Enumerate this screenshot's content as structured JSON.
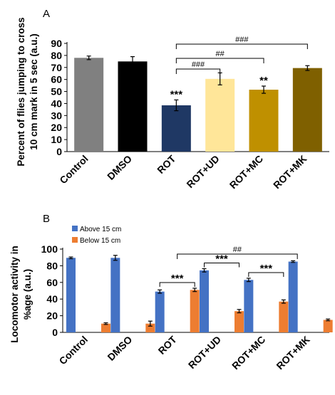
{
  "chart_data": [
    {
      "panel_label": "A",
      "type": "bar",
      "ylabel": "Percent of flies jumping to cross 10 cm mark in 5 sec (a.u.)",
      "ylim": [
        0,
        90
      ],
      "yticks": [
        "0",
        "10",
        "20",
        "30",
        "40",
        "50",
        "60",
        "70",
        "80",
        "90"
      ],
      "categories": [
        "Control",
        "DMSO",
        "ROT",
        "ROT+UD",
        "ROT+MC",
        "ROT+MK"
      ],
      "values": [
        78,
        75,
        38.5,
        60.5,
        51.5,
        69.5
      ],
      "errors": [
        1.5,
        4,
        4.5,
        5,
        3,
        2
      ],
      "colors": [
        "#808080",
        "#000000",
        "#1f3864",
        "#ffe699",
        "#bf9000",
        "#7f6000"
      ],
      "bar_annotations": [
        "",
        "",
        "***",
        "",
        "**",
        ""
      ],
      "comparisons": [
        {
          "from": "ROT",
          "to": "ROT+UD",
          "label": "###"
        },
        {
          "from": "ROT",
          "to": "ROT+MC",
          "label": "##"
        },
        {
          "from": "ROT",
          "to": "ROT+MK",
          "label": "###"
        }
      ],
      "grid": false,
      "legend": "none"
    },
    {
      "panel_label": "B",
      "type": "bar",
      "ylabel": "Locomotor activity in %age (a.u.)",
      "ylim": [
        0,
        100
      ],
      "yticks": [
        "0",
        "20",
        "40",
        "60",
        "80",
        "100"
      ],
      "categories": [
        "Control",
        "DMSO",
        "ROT",
        "ROT+UD",
        "ROT+MC",
        "ROT+MK"
      ],
      "series": [
        {
          "name": "Above 15 cm",
          "color": "#4472c4",
          "values": [
            89.5,
            89.5,
            49,
            74.5,
            63,
            85
          ],
          "errors": [
            1,
            3,
            2,
            2,
            2,
            1
          ]
        },
        {
          "name": "Below 15 cm",
          "color": "#ed7d31",
          "values": [
            10.5,
            10.5,
            51,
            25.5,
            37,
            15
          ],
          "errors": [
            1,
            3,
            2,
            2,
            2,
            1
          ]
        }
      ],
      "pair_annotations": [
        {
          "category": "ROT",
          "label": "***"
        },
        {
          "category": "ROT+UD",
          "label": "***"
        },
        {
          "category": "ROT+MC",
          "label": "***"
        }
      ],
      "comparisons": [
        {
          "from": "ROT",
          "to": "ROT+MK",
          "label": "##"
        }
      ],
      "grid": false,
      "legend": "top-left"
    }
  ]
}
